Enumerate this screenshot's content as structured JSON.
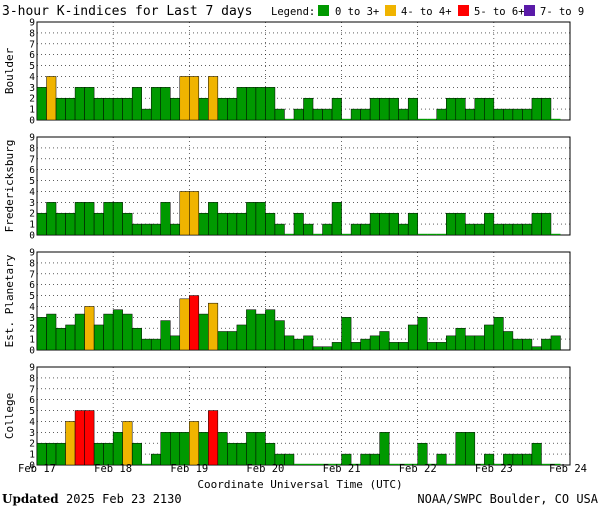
{
  "title": "3-hour K-indices for Last 7 days",
  "legend": {
    "label": "Legend:",
    "items": [
      {
        "label": "0 to 3+",
        "color": "#009900"
      },
      {
        "label": "4- to 4+",
        "color": "#f0b400"
      },
      {
        "label": "5- to 6+",
        "color": "#ff0000"
      },
      {
        "label": "7- to 9",
        "color": "#5a1aa8"
      }
    ]
  },
  "footer": {
    "updated_label": "Updated",
    "updated_value": "2025 Feb 23 2130",
    "credit": "NOAA/SWPC Boulder, CO USA"
  },
  "colors": {
    "quiet": "#009900",
    "active": "#f0b400",
    "storm": "#ff0000",
    "severe": "#5a1aa8"
  },
  "chart_data": [
    {
      "type": "bar",
      "station": "Boulder",
      "xlabel": "Coordinate Universal Time (UTC)",
      "x_ticks": [
        "Feb 17",
        "Feb 18",
        "Feb 19",
        "Feb 20",
        "Feb 21",
        "Feb 22",
        "Feb 23",
        "Feb 24"
      ],
      "ylim": [
        0,
        9
      ],
      "y_ticks": [
        0,
        1,
        2,
        3,
        4,
        5,
        6,
        7,
        8,
        9
      ],
      "grid": true,
      "values": [
        3,
        4,
        2,
        2,
        3,
        3,
        2,
        2,
        2,
        2,
        3,
        1,
        3,
        3,
        2,
        4,
        4,
        2,
        4,
        2,
        2,
        3,
        3,
        3,
        3,
        1,
        0,
        1,
        2,
        1,
        1,
        2,
        0,
        1,
        1,
        2,
        2,
        2,
        1,
        2,
        0,
        0,
        1,
        2,
        2,
        1,
        2,
        2,
        1,
        1,
        1,
        1,
        2,
        2,
        0
      ]
    },
    {
      "type": "bar",
      "station": "Fredericksburg",
      "xlabel": "Coordinate Universal Time (UTC)",
      "x_ticks": [
        "Feb 17",
        "Feb 18",
        "Feb 19",
        "Feb 20",
        "Feb 21",
        "Feb 22",
        "Feb 23",
        "Feb 24"
      ],
      "ylim": [
        0,
        9
      ],
      "y_ticks": [
        0,
        1,
        2,
        3,
        4,
        5,
        6,
        7,
        8,
        9
      ],
      "grid": true,
      "values": [
        2,
        3,
        2,
        2,
        3,
        3,
        2,
        3,
        3,
        2,
        1,
        1,
        1,
        3,
        1,
        4,
        4,
        2,
        3,
        2,
        2,
        2,
        3,
        3,
        2,
        1,
        0,
        2,
        1,
        0,
        1,
        3,
        0,
        1,
        1,
        2,
        2,
        2,
        1,
        2,
        0,
        0,
        0,
        2,
        2,
        1,
        1,
        2,
        1,
        1,
        1,
        1,
        2,
        2,
        0
      ]
    },
    {
      "type": "bar",
      "station": "Est. Planetary",
      "xlabel": "Coordinate Universal Time (UTC)",
      "x_ticks": [
        "Feb 17",
        "Feb 18",
        "Feb 19",
        "Feb 20",
        "Feb 21",
        "Feb 22",
        "Feb 23",
        "Feb 24"
      ],
      "ylim": [
        0,
        9
      ],
      "y_ticks": [
        0,
        1,
        2,
        3,
        4,
        5,
        6,
        7,
        8,
        9
      ],
      "grid": true,
      "values": [
        3,
        3.3,
        2,
        2.3,
        3.3,
        4,
        2.3,
        3.3,
        3.7,
        3.3,
        2,
        1,
        1,
        2.7,
        1.3,
        4.7,
        5,
        3.3,
        4.3,
        1.7,
        1.7,
        2.3,
        3.7,
        3.3,
        3.7,
        2.7,
        1.3,
        1,
        1.3,
        0.3,
        0.3,
        0.7,
        3,
        0.7,
        1,
        1.3,
        1.7,
        0.7,
        0.7,
        2.3,
        3,
        0.7,
        0.7,
        1.3,
        2,
        1.3,
        1.3,
        2.3,
        3,
        1.7,
        1,
        1,
        0.3,
        1,
        1.3
      ]
    },
    {
      "type": "bar",
      "station": "College",
      "xlabel": "Coordinate Universal Time (UTC)",
      "x_ticks": [
        "Feb 17",
        "Feb 18",
        "Feb 19",
        "Feb 20",
        "Feb 21",
        "Feb 22",
        "Feb 23",
        "Feb 24"
      ],
      "ylim": [
        0,
        9
      ],
      "y_ticks": [
        0,
        1,
        2,
        3,
        4,
        5,
        6,
        7,
        8,
        9
      ],
      "grid": true,
      "values": [
        2,
        2,
        2,
        4,
        5,
        5,
        2,
        2,
        3,
        4,
        2,
        0,
        1,
        3,
        3,
        3,
        4,
        3,
        5,
        3,
        2,
        2,
        3,
        3,
        2,
        1,
        1,
        0,
        0,
        0,
        0,
        0,
        1,
        0,
        1,
        1,
        3,
        0,
        0,
        0,
        2,
        0,
        1,
        0,
        3,
        3,
        0,
        1,
        0,
        1,
        1,
        1,
        2,
        0,
        0
      ]
    }
  ]
}
